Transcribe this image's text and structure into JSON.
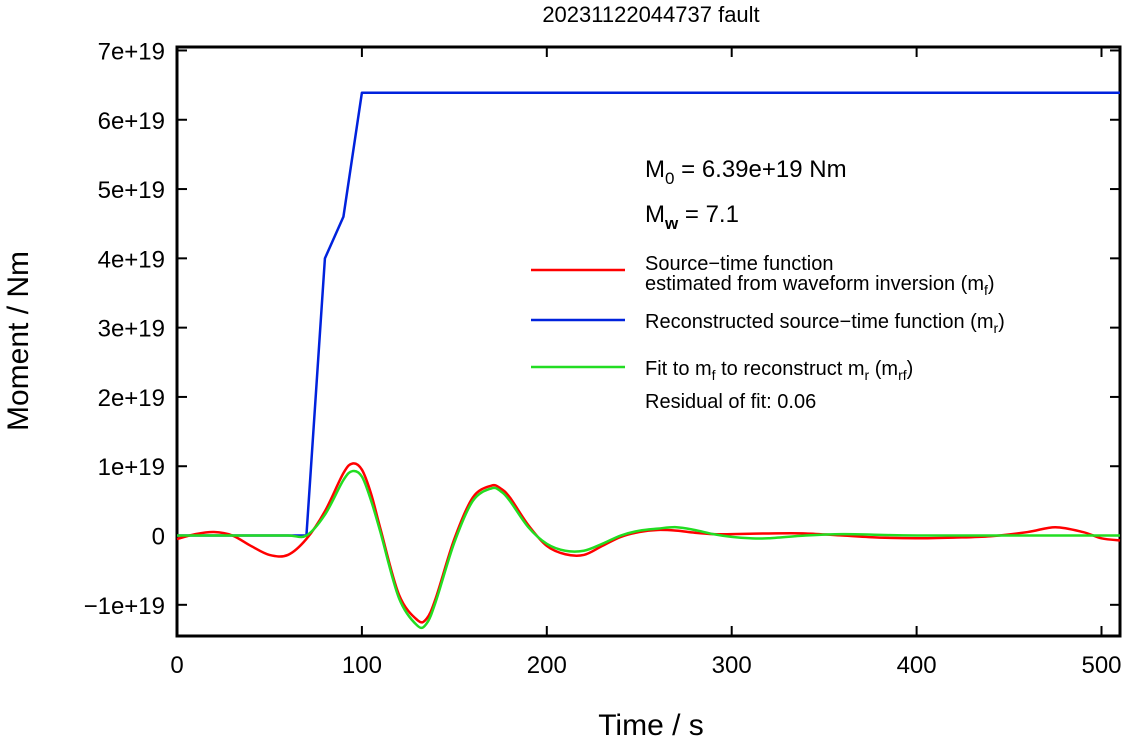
{
  "chart_data": {
    "type": "line",
    "title": "20231122044737 fault",
    "xlabel": "Time / s",
    "ylabel": "Moment / Nm",
    "xlim": [
      0,
      510
    ],
    "ylim": [
      -1.45e+19,
      7.05e+19
    ],
    "xticks": [
      0,
      100,
      200,
      300,
      400,
      500
    ],
    "xtick_labels": [
      "0",
      "100",
      "200",
      "300",
      "400",
      "500"
    ],
    "yticks": [
      -1e+19,
      0,
      1e+19,
      2e+19,
      3e+19,
      4e+19,
      5e+19,
      6e+19,
      7e+19
    ],
    "ytick_labels": [
      "−1e+19",
      "0",
      "1e+19",
      "2e+19",
      "3e+19",
      "4e+19",
      "5e+19",
      "6e+19",
      "7e+19"
    ],
    "grid": false,
    "annotations": {
      "m0": {
        "main": "M",
        "sub": "0",
        "rest": " = 6.39e+19 Nm"
      },
      "mw": {
        "main": "M",
        "sub": "w",
        "rest": " = 7.1"
      },
      "residual": "Residual of fit: 0.06"
    },
    "series": [
      {
        "legend_line1": "Source−time function",
        "legend_line2": {
          "pre": "estimated from waveform inversion (m",
          "sub": "f",
          "post": ")"
        },
        "color": "#ff0000",
        "x": [
          0,
          10,
          20,
          30,
          40,
          50,
          60,
          70,
          80,
          90,
          95,
          100,
          105,
          110,
          120,
          130,
          135,
          140,
          150,
          160,
          170,
          175,
          180,
          190,
          200,
          210,
          220,
          230,
          240,
          250,
          260,
          270,
          280,
          290,
          300,
          320,
          340,
          360,
          380,
          400,
          420,
          440,
          460,
          475,
          490,
          500,
          510
        ],
        "y": [
          -5e+17,
          2e+17,
          5e+17,
          0.0,
          -1.5e+18,
          -2.8e+18,
          -2.8e+18,
          -5e+17,
          3.5e+18,
          9e+18,
          1.04e+19,
          9.5e+18,
          6e+18,
          1e+18,
          -8.5e+18,
          -1.22e+19,
          -1.2e+19,
          -9e+18,
          -5e+17,
          5.5e+18,
          7.2e+18,
          6.8e+18,
          5.5e+18,
          1.5e+18,
          -1.5e+18,
          -2.7e+18,
          -2.8e+18,
          -1.5e+18,
          -2e+17,
          5e+17,
          8e+17,
          7e+17,
          4e+17,
          2e+17,
          2e+17,
          3e+17,
          3e+17,
          0.0,
          -3e+17,
          -4e+17,
          -3e+17,
          -1e+17,
          5e+17,
          1.2e+18,
          5e+17,
          -4e+17,
          -7e+17
        ]
      },
      {
        "legend_line1": {
          "pre": "Reconstructed source−time function (m",
          "sub": "r",
          "post": ")"
        },
        "color": "#0022dd",
        "x": [
          0,
          70,
          80,
          90,
          100,
          510
        ],
        "y": [
          0,
          0,
          4e+19,
          4.6e+19,
          6.39e+19,
          6.39e+19
        ]
      },
      {
        "legend_line1": {
          "pre": "Fit to m",
          "sub": "f",
          "mid": " to reconstruct m",
          "sub2": "r",
          "mid2": " (m",
          "sub3": "rf",
          "post": ")"
        },
        "color": "#22dd22",
        "x": [
          0,
          20,
          40,
          60,
          70,
          80,
          90,
          95,
          100,
          105,
          110,
          120,
          130,
          135,
          140,
          150,
          160,
          170,
          175,
          180,
          190,
          200,
          210,
          220,
          230,
          240,
          250,
          260,
          270,
          280,
          290,
          300,
          310,
          320,
          340,
          360,
          380,
          400,
          440,
          480,
          510
        ],
        "y": [
          0,
          0,
          0,
          0,
          0.0,
          3e+18,
          8e+18,
          9.3e+18,
          8.5e+18,
          5e+18,
          5e+17,
          -9e+18,
          -1.3e+19,
          -1.27e+19,
          -9.5e+18,
          -1e+18,
          5e+18,
          6.8e+18,
          6.4e+18,
          5e+18,
          1.2e+18,
          -1.2e+18,
          -2.2e+18,
          -2.2e+18,
          -1.2e+18,
          0.0,
          7e+17,
          1e+18,
          1.2e+18,
          8e+17,
          2e+17,
          -2e+17,
          -4e+17,
          -4e+17,
          0.0,
          2e+17,
          1e+17,
          0.0,
          0.0,
          0.0,
          0.0
        ]
      }
    ]
  }
}
